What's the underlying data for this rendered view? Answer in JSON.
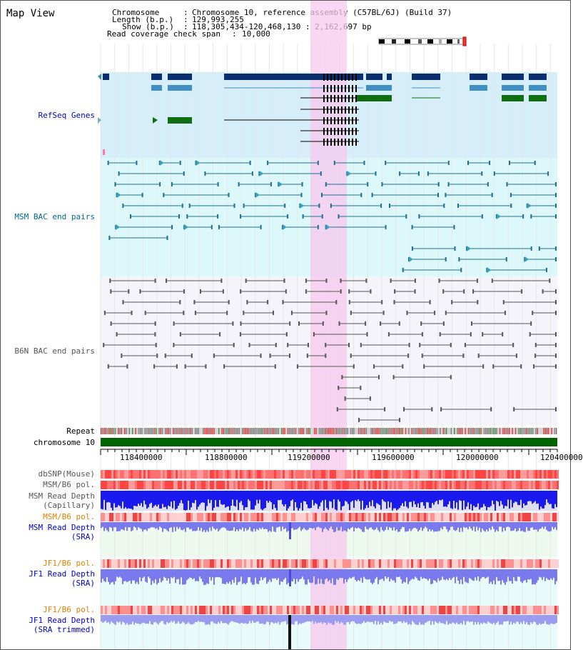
{
  "header": {
    "title": "Map View",
    "chromosome_key": "Chromosome",
    "chromosome_value": "Chromosome 10, reference assembly (C57BL/6J) (Build 37)",
    "length_key": "Length (b.p.)",
    "length_value": "129,993,255",
    "show_key": "Show (b.p.)",
    "show_value": "118,305,434-120,468,130 : 2,162,697 bp",
    "coverage_key": "Read coverage check span",
    "coverage_value": "10,000"
  },
  "tracks": {
    "refseq": "RefSeq Genes",
    "msm_bac": "MSM BAC end pairs",
    "b6n_bac": "B6N BAC end pairs",
    "repeat": "Repeat",
    "chromosome": "chromosome 10",
    "dbsnp": "dbSNP(Mouse)",
    "msm_b6_pol_1": "MSM/B6 pol.",
    "msm_depth_cap_1": "MSM Read Depth",
    "msm_depth_cap_2": "(Capillary)",
    "msm_b6_pol_2": "MSM/B6 pol.",
    "msm_depth_sra_1": "MSM Read Depth",
    "msm_depth_sra_2": "(SRA)",
    "jf1_b6_pol_1": "JF1/B6 pol.",
    "jf1_depth_sra_1": "JF1 Read Depth",
    "jf1_depth_sra_2": "(SRA)",
    "jf1_b6_pol_2": "JF1/B6 pol.",
    "jf1_depth_trim_1": "JF1 Read Depth",
    "jf1_depth_trim_2": "(SRA trimmed)"
  },
  "axis": {
    "ticks": [
      "118400000",
      "118800000",
      "119200000",
      "119600000",
      "120000000",
      "120400000"
    ]
  },
  "colors": {
    "refseq_bg": "#d6eef9",
    "msm_bg": "#ddf8fb",
    "b6n_bg": "#f4f4fa",
    "highlight": "#f7c8ee",
    "gene_dark": "#0a2f6e",
    "gene_mid": "#3f8fc4",
    "gene_green": "#0f6e12",
    "msm_line": "#1e6e8e",
    "b6n_line": "#555555",
    "chrom_green": "#006400",
    "depth_blue": "#1a1aee",
    "depth_light": "#7a7aee"
  }
}
